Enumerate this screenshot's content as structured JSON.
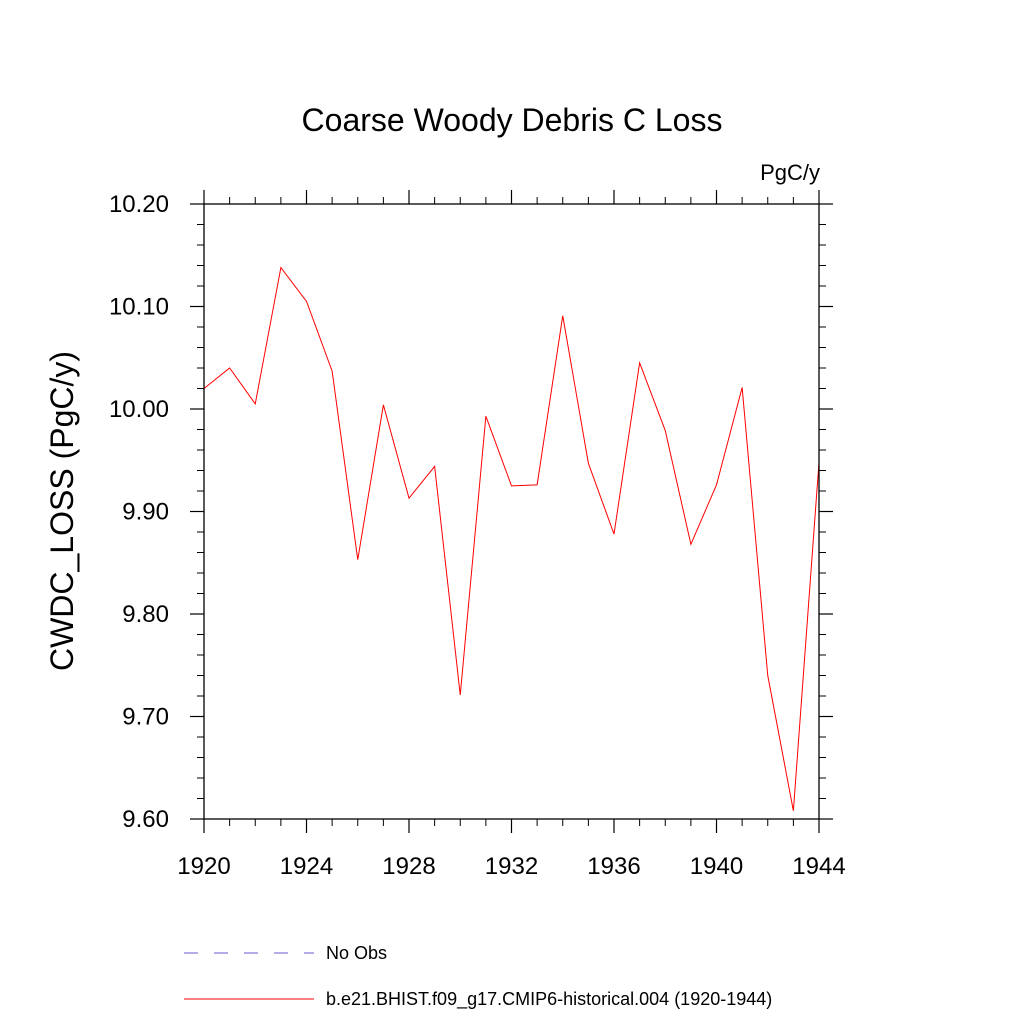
{
  "chart_data": {
    "type": "line",
    "title": "Coarse Woody Debris C Loss",
    "units": "PgC/y",
    "ylabel": "CWDC_LOSS  (PgC/y)",
    "xlabel": "",
    "xlim": [
      1920,
      1944
    ],
    "ylim": [
      9.6,
      10.2
    ],
    "x_ticks": [
      1920,
      1924,
      1928,
      1932,
      1936,
      1940,
      1944
    ],
    "x_tick_labels": [
      "1920",
      "1924",
      "1928",
      "1932",
      "1936",
      "1940",
      "1944"
    ],
    "y_ticks": [
      9.6,
      9.7,
      9.8,
      9.9,
      10.0,
      10.1,
      10.2
    ],
    "y_tick_labels": [
      "9.60",
      "9.70",
      "9.80",
      "9.90",
      "10.00",
      "10.10",
      "10.20"
    ],
    "grid": false,
    "legend_position": "bottom",
    "series": [
      {
        "name": "b.e21.BHIST.f09_g17.CMIP6-historical.004 (1920-1944)",
        "color": "#ff0000",
        "style": "solid",
        "x": [
          1920,
          1921,
          1922,
          1923,
          1924,
          1925,
          1926,
          1927,
          1928,
          1929,
          1930,
          1931,
          1932,
          1933,
          1934,
          1935,
          1936,
          1937,
          1938,
          1939,
          1940,
          1941,
          1942,
          1943,
          1944
        ],
        "values": [
          10.02,
          10.04,
          10.005,
          10.138,
          10.105,
          10.037,
          9.853,
          10.004,
          9.913,
          9.944,
          9.721,
          9.993,
          9.925,
          9.926,
          10.091,
          9.947,
          9.878,
          10.045,
          9.979,
          9.868,
          9.926,
          10.021,
          9.74,
          9.608,
          9.948
        ]
      },
      {
        "name": "No Obs",
        "color": "#6a5acd",
        "style": "dashed",
        "x": [],
        "values": []
      }
    ]
  }
}
